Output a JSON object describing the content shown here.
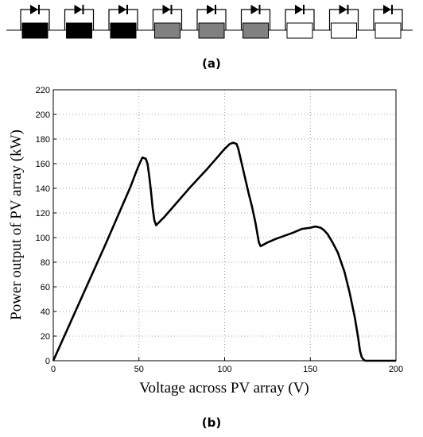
{
  "panel_a": {
    "label": "(a)",
    "modules": [
      {
        "shade": "full"
      },
      {
        "shade": "full"
      },
      {
        "shade": "full"
      },
      {
        "shade": "partial"
      },
      {
        "shade": "partial"
      },
      {
        "shade": "partial"
      },
      {
        "shade": "none"
      },
      {
        "shade": "none"
      },
      {
        "shade": "none"
      }
    ],
    "colors": {
      "full": "#000000",
      "partial": "#808080",
      "none": "#ffffff"
    }
  },
  "panel_b": {
    "label": "(b)"
  },
  "chart_data": {
    "type": "line",
    "xlabel": "Voltage across PV array (V)",
    "ylabel": "Power output of PV array (kW)",
    "xlim": [
      0,
      200
    ],
    "ylim": [
      0,
      220
    ],
    "xticks": [
      0,
      50,
      100,
      150,
      200
    ],
    "yticks": [
      0,
      20,
      40,
      60,
      80,
      100,
      120,
      140,
      160,
      180,
      200,
      220
    ],
    "grid": true,
    "grid_style": "dotted",
    "line_color": "#000000",
    "series": [
      {
        "x": [
          0,
          10,
          20,
          30,
          40,
          45,
          48,
          50,
          52,
          54,
          55,
          56,
          57,
          58,
          59,
          60,
          65,
          70,
          80,
          90,
          95,
          100,
          103,
          105,
          107,
          108,
          110,
          112,
          114,
          116,
          118,
          119,
          120,
          121,
          125,
          130,
          140,
          145,
          150,
          153,
          156,
          158,
          160,
          163,
          166,
          170,
          173,
          176,
          178,
          179,
          180,
          181,
          182,
          190,
          200
        ],
        "y": [
          0,
          31,
          62,
          93,
          125,
          141,
          152,
          159,
          165,
          164,
          160,
          150,
          138,
          124,
          114,
          110,
          117,
          125,
          141,
          156,
          164,
          172,
          176,
          177,
          176,
          172,
          160,
          148,
          136,
          125,
          112,
          104,
          96,
          93,
          96,
          99,
          104,
          107,
          108,
          109,
          108,
          106,
          103,
          96,
          88,
          72,
          55,
          35,
          18,
          8,
          3,
          1,
          0,
          0,
          0
        ]
      }
    ]
  }
}
